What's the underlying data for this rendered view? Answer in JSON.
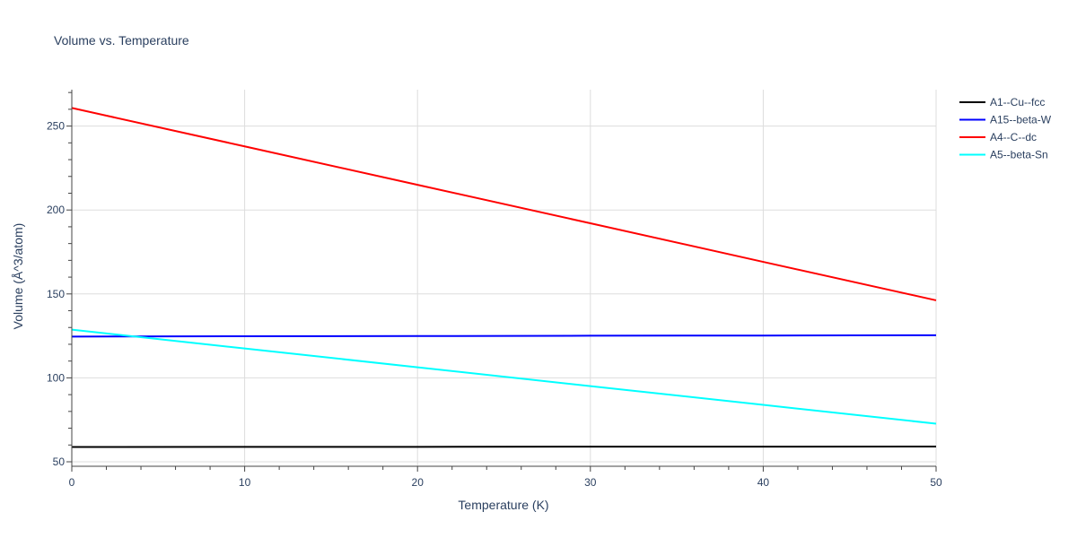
{
  "chart_data": {
    "type": "line",
    "title": "Volume vs. Temperature",
    "xlabel": "Temperature (K)",
    "ylabel": "Volume (Å^3/atom)",
    "xlim": [
      0,
      50
    ],
    "ylim": [
      47,
      272
    ],
    "xticks": [
      0,
      10,
      20,
      30,
      40,
      50
    ],
    "yticks": [
      50,
      100,
      150,
      200,
      250
    ],
    "grid": true,
    "legend_position": "top-right",
    "x": [
      0,
      10,
      20,
      30,
      40,
      50
    ],
    "series": [
      {
        "name": "A1--Cu--fcc",
        "color": "#000000",
        "values": [
          58.8,
          58.9,
          58.9,
          59.0,
          59.0,
          59.1
        ]
      },
      {
        "name": "A15--beta-W",
        "color": "#0000ff",
        "values": [
          124.6,
          124.8,
          124.9,
          125.1,
          125.2,
          125.4
        ]
      },
      {
        "name": "A4--C--dc",
        "color": "#ff0000",
        "values": [
          260.8,
          237.9,
          215.0,
          192.1,
          169.1,
          146.2
        ]
      },
      {
        "name": "A5--beta-Sn",
        "color": "#00ffff",
        "values": [
          128.7,
          117.5,
          106.3,
          95.1,
          83.9,
          72.7
        ]
      }
    ]
  }
}
